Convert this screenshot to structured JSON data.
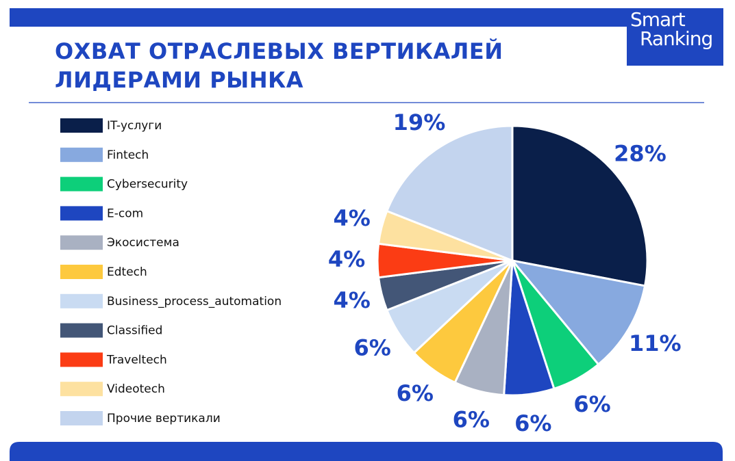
{
  "logo": {
    "line1": "Smart",
    "line2": "Ranking"
  },
  "chart_data": {
    "type": "pie",
    "title": "ОХВАТ ОТРАСЛЕВЫХ ВЕРТИКАЛЕЙ ЛИДЕРАМИ РЫНКА",
    "categories": [
      "IT-услуги",
      "Fintech",
      "Cybersecurity",
      "E-com",
      "Экосистема",
      "Edtech",
      "Business_process_automation",
      "Classified",
      "Traveltech",
      "Videotech",
      "Прочие вертикали"
    ],
    "values": [
      28,
      11,
      6,
      6,
      6,
      6,
      6,
      4,
      4,
      4,
      19
    ],
    "value_labels": [
      "28%",
      "11%",
      "6%",
      "6%",
      "6%",
      "6%",
      "6%",
      "4%",
      "4%",
      "4%",
      "19%"
    ],
    "colors": [
      "#0a1f4a",
      "#87a9df",
      "#0dcf7a",
      "#1e46c0",
      "#a9b1c2",
      "#fdc93e",
      "#c9dbf2",
      "#435677",
      "#fb3c14",
      "#fde1a0",
      "#c3d4ee"
    ],
    "legend": "left"
  }
}
